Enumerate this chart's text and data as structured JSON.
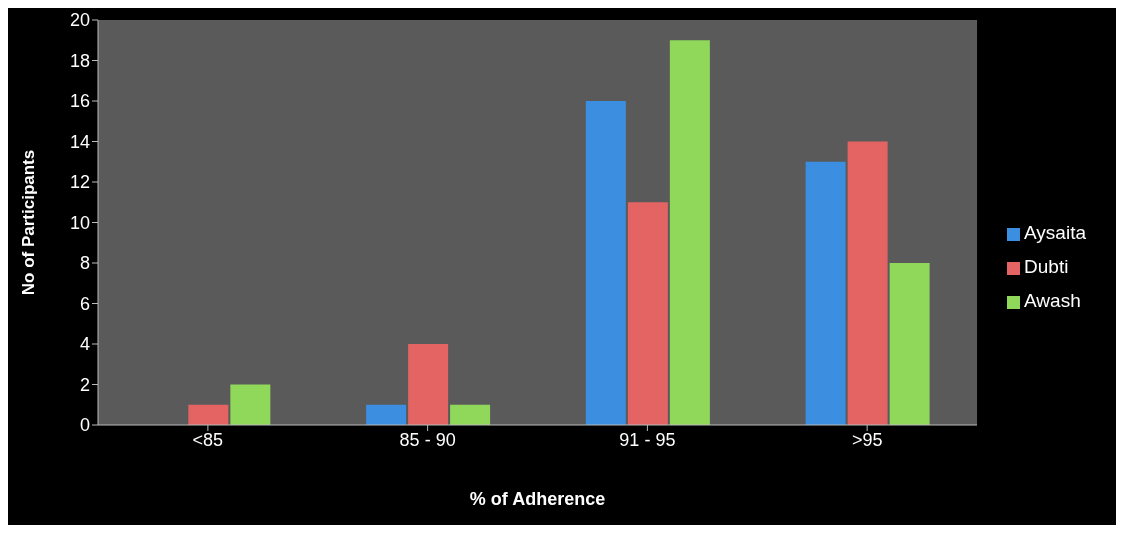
{
  "chart_data": {
    "type": "bar",
    "xlabel": "% of Adherence",
    "ylabel": "No of Participants",
    "categories": [
      "<85",
      "85 - 90",
      "91 - 95",
      ">95"
    ],
    "series": [
      {
        "name": "Aysaita",
        "color": "#3b8ee0",
        "values": [
          0,
          1,
          16,
          13
        ]
      },
      {
        "name": "Dubti",
        "color": "#e46464",
        "values": [
          1,
          4,
          11,
          14
        ]
      },
      {
        "name": "Awash",
        "color": "#8fd85a",
        "values": [
          2,
          1,
          19,
          8
        ]
      }
    ],
    "ylim": [
      0,
      20
    ],
    "yticks": [
      0,
      2,
      4,
      6,
      8,
      10,
      12,
      14,
      16,
      18,
      20
    ],
    "grid": false,
    "legend": "right"
  }
}
